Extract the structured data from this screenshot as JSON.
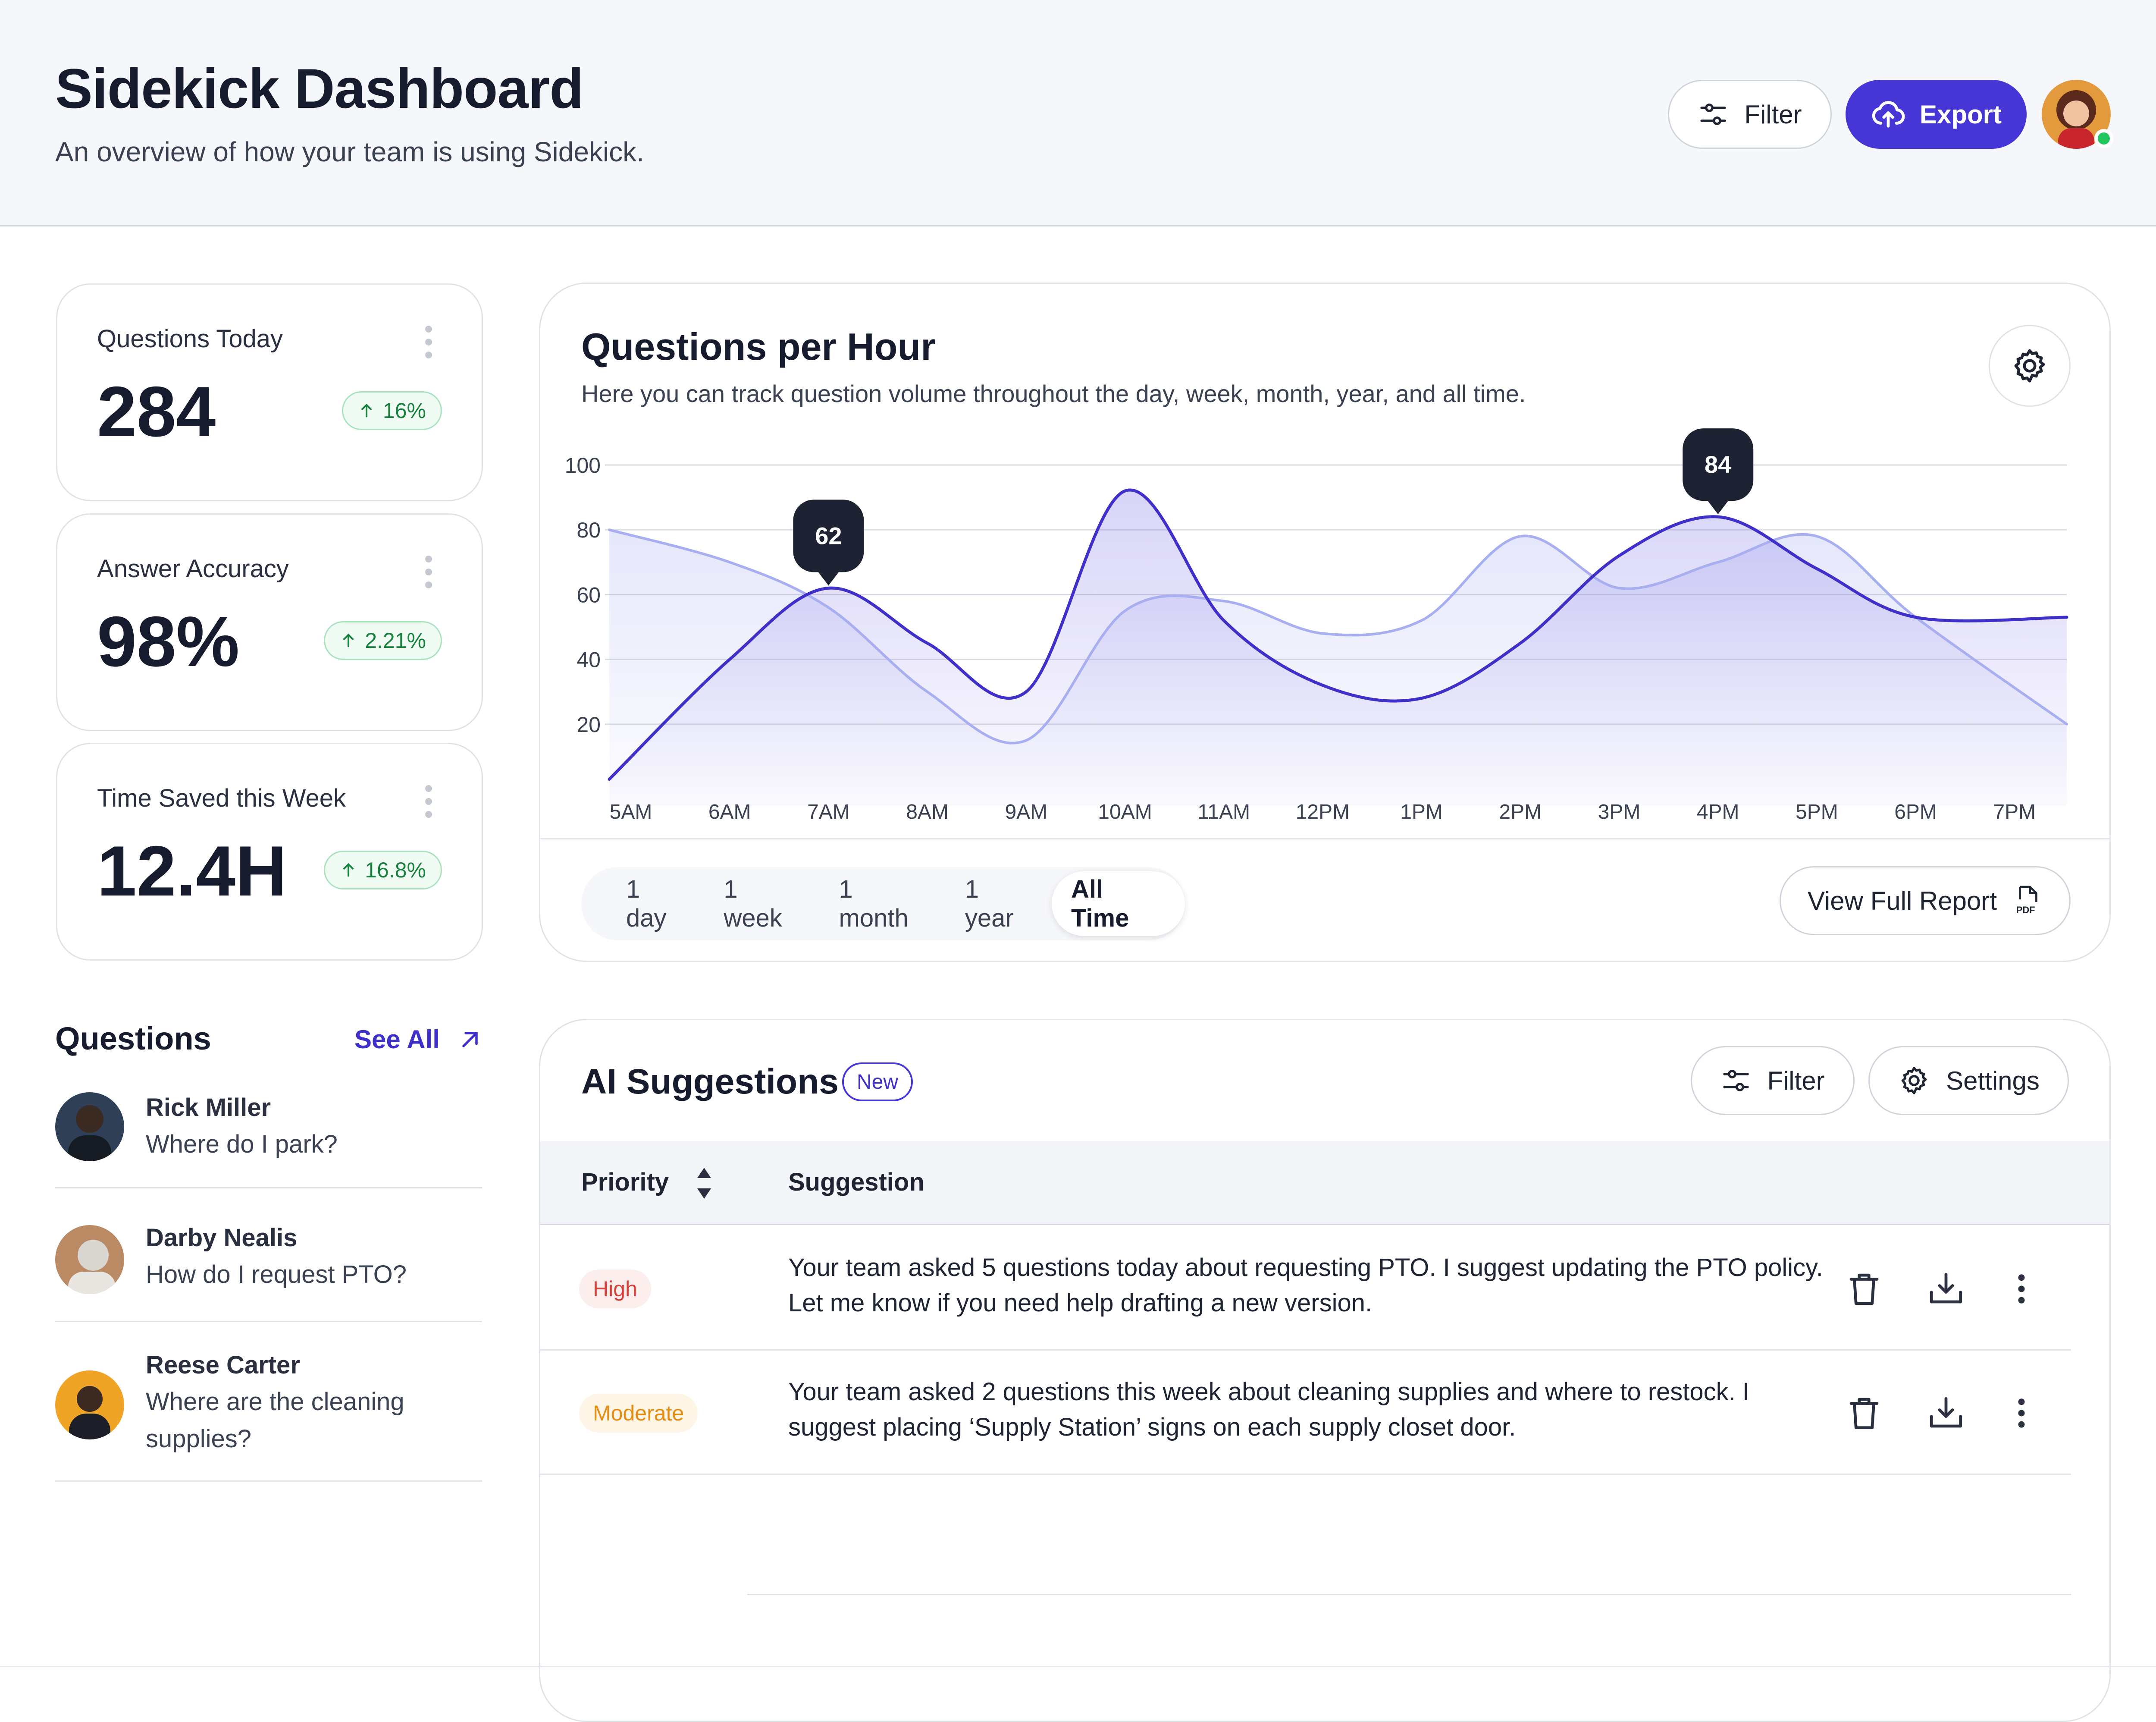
{
  "header": {
    "title": "Sidekick Dashboard",
    "subtitle": "An overview of how your team is using Sidekick.",
    "filter_label": "Filter",
    "export_label": "Export"
  },
  "stats": [
    {
      "label": "Questions Today",
      "value": "284",
      "delta": "16%"
    },
    {
      "label": "Answer Accuracy",
      "value": "98%",
      "delta": "2.21%"
    },
    {
      "label": "Time Saved this Week",
      "value": "12.4H",
      "delta": "16.8%"
    }
  ],
  "chart": {
    "title": "Questions per Hour",
    "subtitle": "Here you can track question volume throughout the day, week, month, year, and all time.",
    "ranges": [
      "1 day",
      "1 week",
      "1 month",
      "1 year",
      "All Time"
    ],
    "active_range": "All Time",
    "report_label": "View Full Report"
  },
  "chart_data": {
    "type": "area",
    "x": [
      "5AM",
      "6AM",
      "7AM",
      "8AM",
      "9AM",
      "10AM",
      "11AM",
      "12PM",
      "1PM",
      "2PM",
      "3PM",
      "4PM",
      "5PM",
      "6PM",
      "7PM"
    ],
    "ylim": [
      0,
      100
    ],
    "yticks": [
      20,
      40,
      60,
      80,
      100
    ],
    "grid": true,
    "series": [
      {
        "color": "#3e30c9",
        "values": [
          3,
          40,
          62,
          45,
          30,
          92,
          52,
          32,
          28,
          45,
          72,
          84,
          68,
          53,
          53
        ]
      },
      {
        "color": "#a8aff0",
        "values": [
          80,
          70,
          56,
          30,
          15,
          55,
          58,
          48,
          52,
          78,
          62,
          70,
          78,
          53,
          20
        ]
      }
    ],
    "callouts": [
      {
        "x": "7AM",
        "value": "62"
      },
      {
        "x": "4PM",
        "value": "84"
      }
    ]
  },
  "questions": {
    "title": "Questions",
    "see_all": "See All",
    "items": [
      {
        "name": "Rick Miller",
        "text": "Where do I park?"
      },
      {
        "name": "Darby Nealis",
        "text": "How do I request PTO?"
      },
      {
        "name": "Reese Carter",
        "text": "Where are the cleaning supplies?"
      }
    ]
  },
  "suggestions": {
    "title": "AI Suggestions",
    "badge": "New",
    "filter_label": "Filter",
    "settings_label": "Settings",
    "col_priority": "Priority",
    "col_suggestion": "Suggestion",
    "rows": [
      {
        "priority": "High",
        "text": "Your team asked 5 questions today about requesting PTO. I suggest updating the PTO policy. Let me know if you need help drafting a new version."
      },
      {
        "priority": "Moderate",
        "text": "Your team asked 2 questions this week about cleaning supplies and where to restock. I suggest placing ‘Supply Station’ signs on each supply closet door."
      }
    ]
  },
  "colors": {
    "accent": "#4736d6",
    "high_bg": "#fdeeee",
    "high_text": "#d8403a",
    "moderate_bg": "#fff5e6",
    "moderate_text": "#e58d12",
    "success": "#16803c"
  }
}
